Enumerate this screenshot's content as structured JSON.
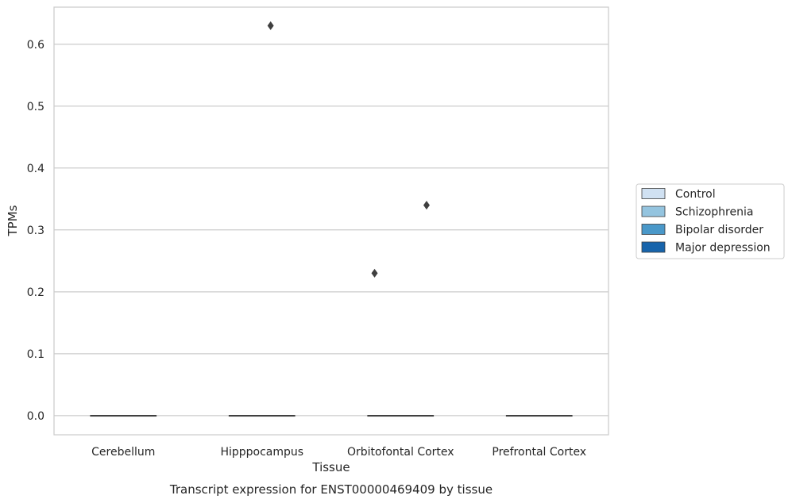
{
  "chart_data": {
    "type": "box",
    "caption": "Transcript expression for ENST00000469409 by tissue",
    "xlabel": "Tissue",
    "ylabel": "TPMs",
    "ylim": [
      -0.031,
      0.66
    ],
    "yticks": [
      0.0,
      0.1,
      0.2,
      0.3,
      0.4,
      0.5,
      0.6
    ],
    "ytick_labels": [
      "0.0",
      "0.1",
      "0.2",
      "0.3",
      "0.4",
      "0.5",
      "0.6"
    ],
    "categories": [
      "Cerebellum",
      "Hipppocampus",
      "Orbitofontal Cortex",
      "Prefrontal Cortex"
    ],
    "grid": true,
    "legend_position": "right",
    "series": [
      {
        "name": "Control",
        "color": "#d0e1f2"
      },
      {
        "name": "Schizophrenia",
        "color": "#94c4df"
      },
      {
        "name": "Bipolar disorder",
        "color": "#4a98c9"
      },
      {
        "name": "Major depression",
        "color": "#1764ab"
      }
    ],
    "boxes": [
      {
        "category": "Cerebellum",
        "median": 0.0,
        "q1": 0.0,
        "q3": 0.0
      },
      {
        "category": "Hipppocampus",
        "median": 0.0,
        "q1": 0.0,
        "q3": 0.0
      },
      {
        "category": "Orbitofontal Cortex",
        "median": 0.0,
        "q1": 0.0,
        "q3": 0.0
      },
      {
        "category": "Prefrontal Cortex",
        "median": 0.0,
        "q1": 0.0,
        "q3": 0.0
      }
    ],
    "outliers": [
      {
        "category": "Hipppocampus",
        "series": "Bipolar disorder",
        "value": 0.63
      },
      {
        "category": "Orbitofontal Cortex",
        "series": "Control",
        "value": 0.23
      },
      {
        "category": "Orbitofontal Cortex",
        "series": "Major depression",
        "value": 0.34
      }
    ]
  }
}
